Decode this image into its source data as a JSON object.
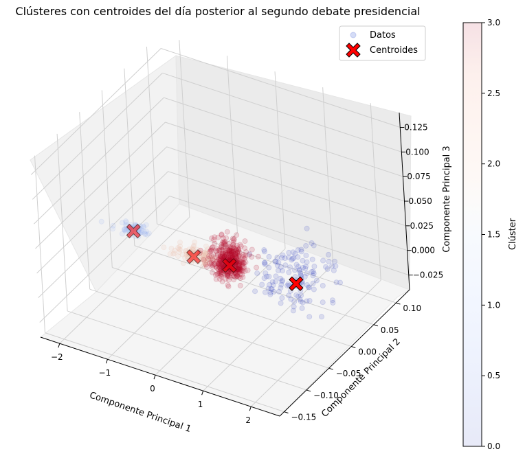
{
  "chart_data": {
    "type": "scatter",
    "projection": "3d",
    "title": "Clústeres con centroides del día posterior al segundo debate presidencial",
    "xlabel": "Componente Principal 1",
    "ylabel": "Componente Principal 2",
    "zlabel": "Componente Principal 3",
    "xticks": [
      "−2",
      "−1",
      "0",
      "1",
      "2"
    ],
    "yticks": [
      "−0.15",
      "−0.10",
      "−0.05",
      "0.00",
      "0.05",
      "0.10"
    ],
    "zticks": [
      "−0.025",
      "0.000",
      "0.025",
      "0.050",
      "0.075",
      "0.100",
      "0.125"
    ],
    "xlim": [
      -2.4,
      2.6
    ],
    "ylim": [
      -0.16,
      0.13
    ],
    "zlim": [
      -0.04,
      0.14
    ],
    "colormap": "coolwarm",
    "point_alpha": 0.15,
    "legend": {
      "placement": "upper right",
      "entries": [
        {
          "label": "Datos",
          "marker": "circle"
        },
        {
          "label": "Centroides",
          "marker": "X",
          "color": "#ff0000"
        }
      ]
    },
    "colorbar": {
      "label": "Clúster",
      "range": [
        0,
        3
      ],
      "ticks": [
        "0.0",
        "0.5",
        "1.0",
        "1.5",
        "2.0",
        "2.5",
        "3.0"
      ]
    },
    "centroids": [
      {
        "cluster": 3,
        "x": -0.1,
        "y": 0.02,
        "z": -0.01
      },
      {
        "cluster": 0,
        "x": 1.4,
        "y": 0.01,
        "z": 0.0
      },
      {
        "cluster": 1,
        "x": -1.9,
        "y": 0.0,
        "z": 0.005
      },
      {
        "cluster": 2,
        "x": -0.8,
        "y": 0.015,
        "z": -0.01
      }
    ],
    "clusters": [
      {
        "cluster": 0,
        "center": [
          1.4,
          0.01,
          0.0
        ],
        "spread": [
          0.7,
          0.045,
          0.025
        ],
        "count": 140
      },
      {
        "cluster": 1,
        "center": [
          -1.9,
          0.0,
          0.005
        ],
        "spread": [
          0.35,
          0.01,
          0.004
        ],
        "count": 60
      },
      {
        "cluster": 2,
        "center": [
          -0.8,
          0.015,
          -0.01
        ],
        "spread": [
          0.45,
          0.012,
          0.006
        ],
        "count": 110
      },
      {
        "cluster": 3,
        "center": [
          -0.1,
          0.02,
          -0.01
        ],
        "spread": [
          0.35,
          0.02,
          0.018
        ],
        "count": 420
      }
    ]
  }
}
